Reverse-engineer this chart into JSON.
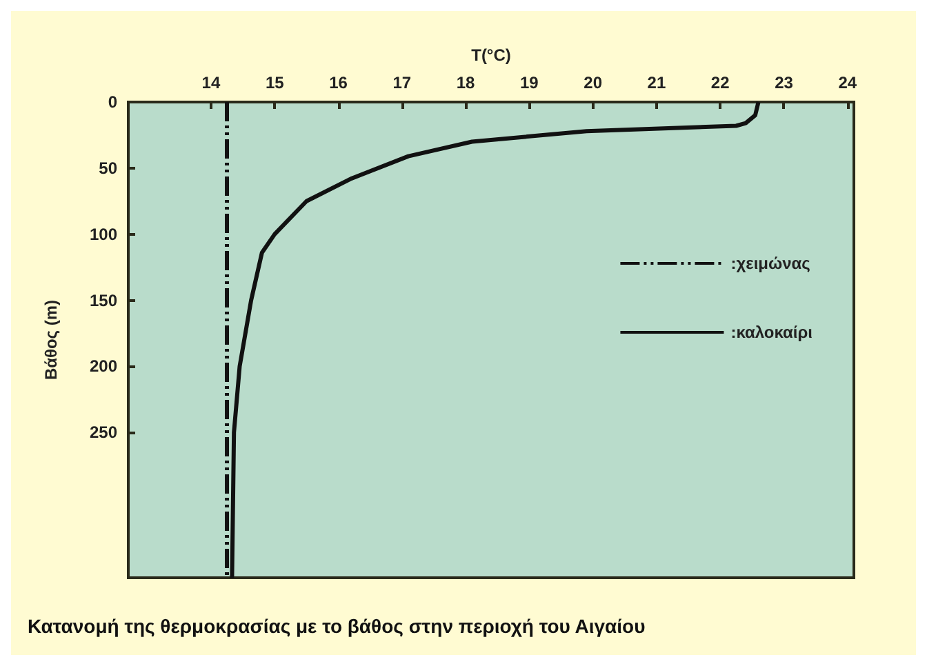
{
  "chart_data": {
    "type": "line",
    "xlabel": "T(°C)",
    "ylabel": "Βάθος (m)",
    "xlim": [
      12.7,
      24.1
    ],
    "xticks": [
      14,
      15,
      16,
      17,
      18,
      19,
      20,
      21,
      22,
      23,
      24
    ],
    "ylim": [
      360,
      0
    ],
    "yticks": [
      0,
      50,
      100,
      150,
      200,
      250
    ],
    "grid": false,
    "legend": "right",
    "marker": "none",
    "series": [
      {
        "name": ":χειμώνας",
        "color": "#111111",
        "line_style": "dashed",
        "x": [
          14.25,
          14.25
        ],
        "values": [
          0,
          360
        ]
      },
      {
        "name": ":καλοκαίρι",
        "color": "#111111",
        "line_style": "solid",
        "x": [
          22.6,
          22.55,
          22.4,
          22.25,
          19.9,
          18.1,
          17.1,
          16.2,
          15.5,
          15.0,
          14.8,
          14.63,
          14.45,
          14.36,
          14.33
        ],
        "values": [
          0,
          10,
          16,
          18,
          22,
          30,
          41,
          58,
          75,
          100,
          114,
          150,
          200,
          250,
          360
        ]
      }
    ],
    "annotations": [
      "Κατανομή της θερμοκρασίας με το βάθος στην περιοχή του Αιγαίου"
    ]
  }
}
